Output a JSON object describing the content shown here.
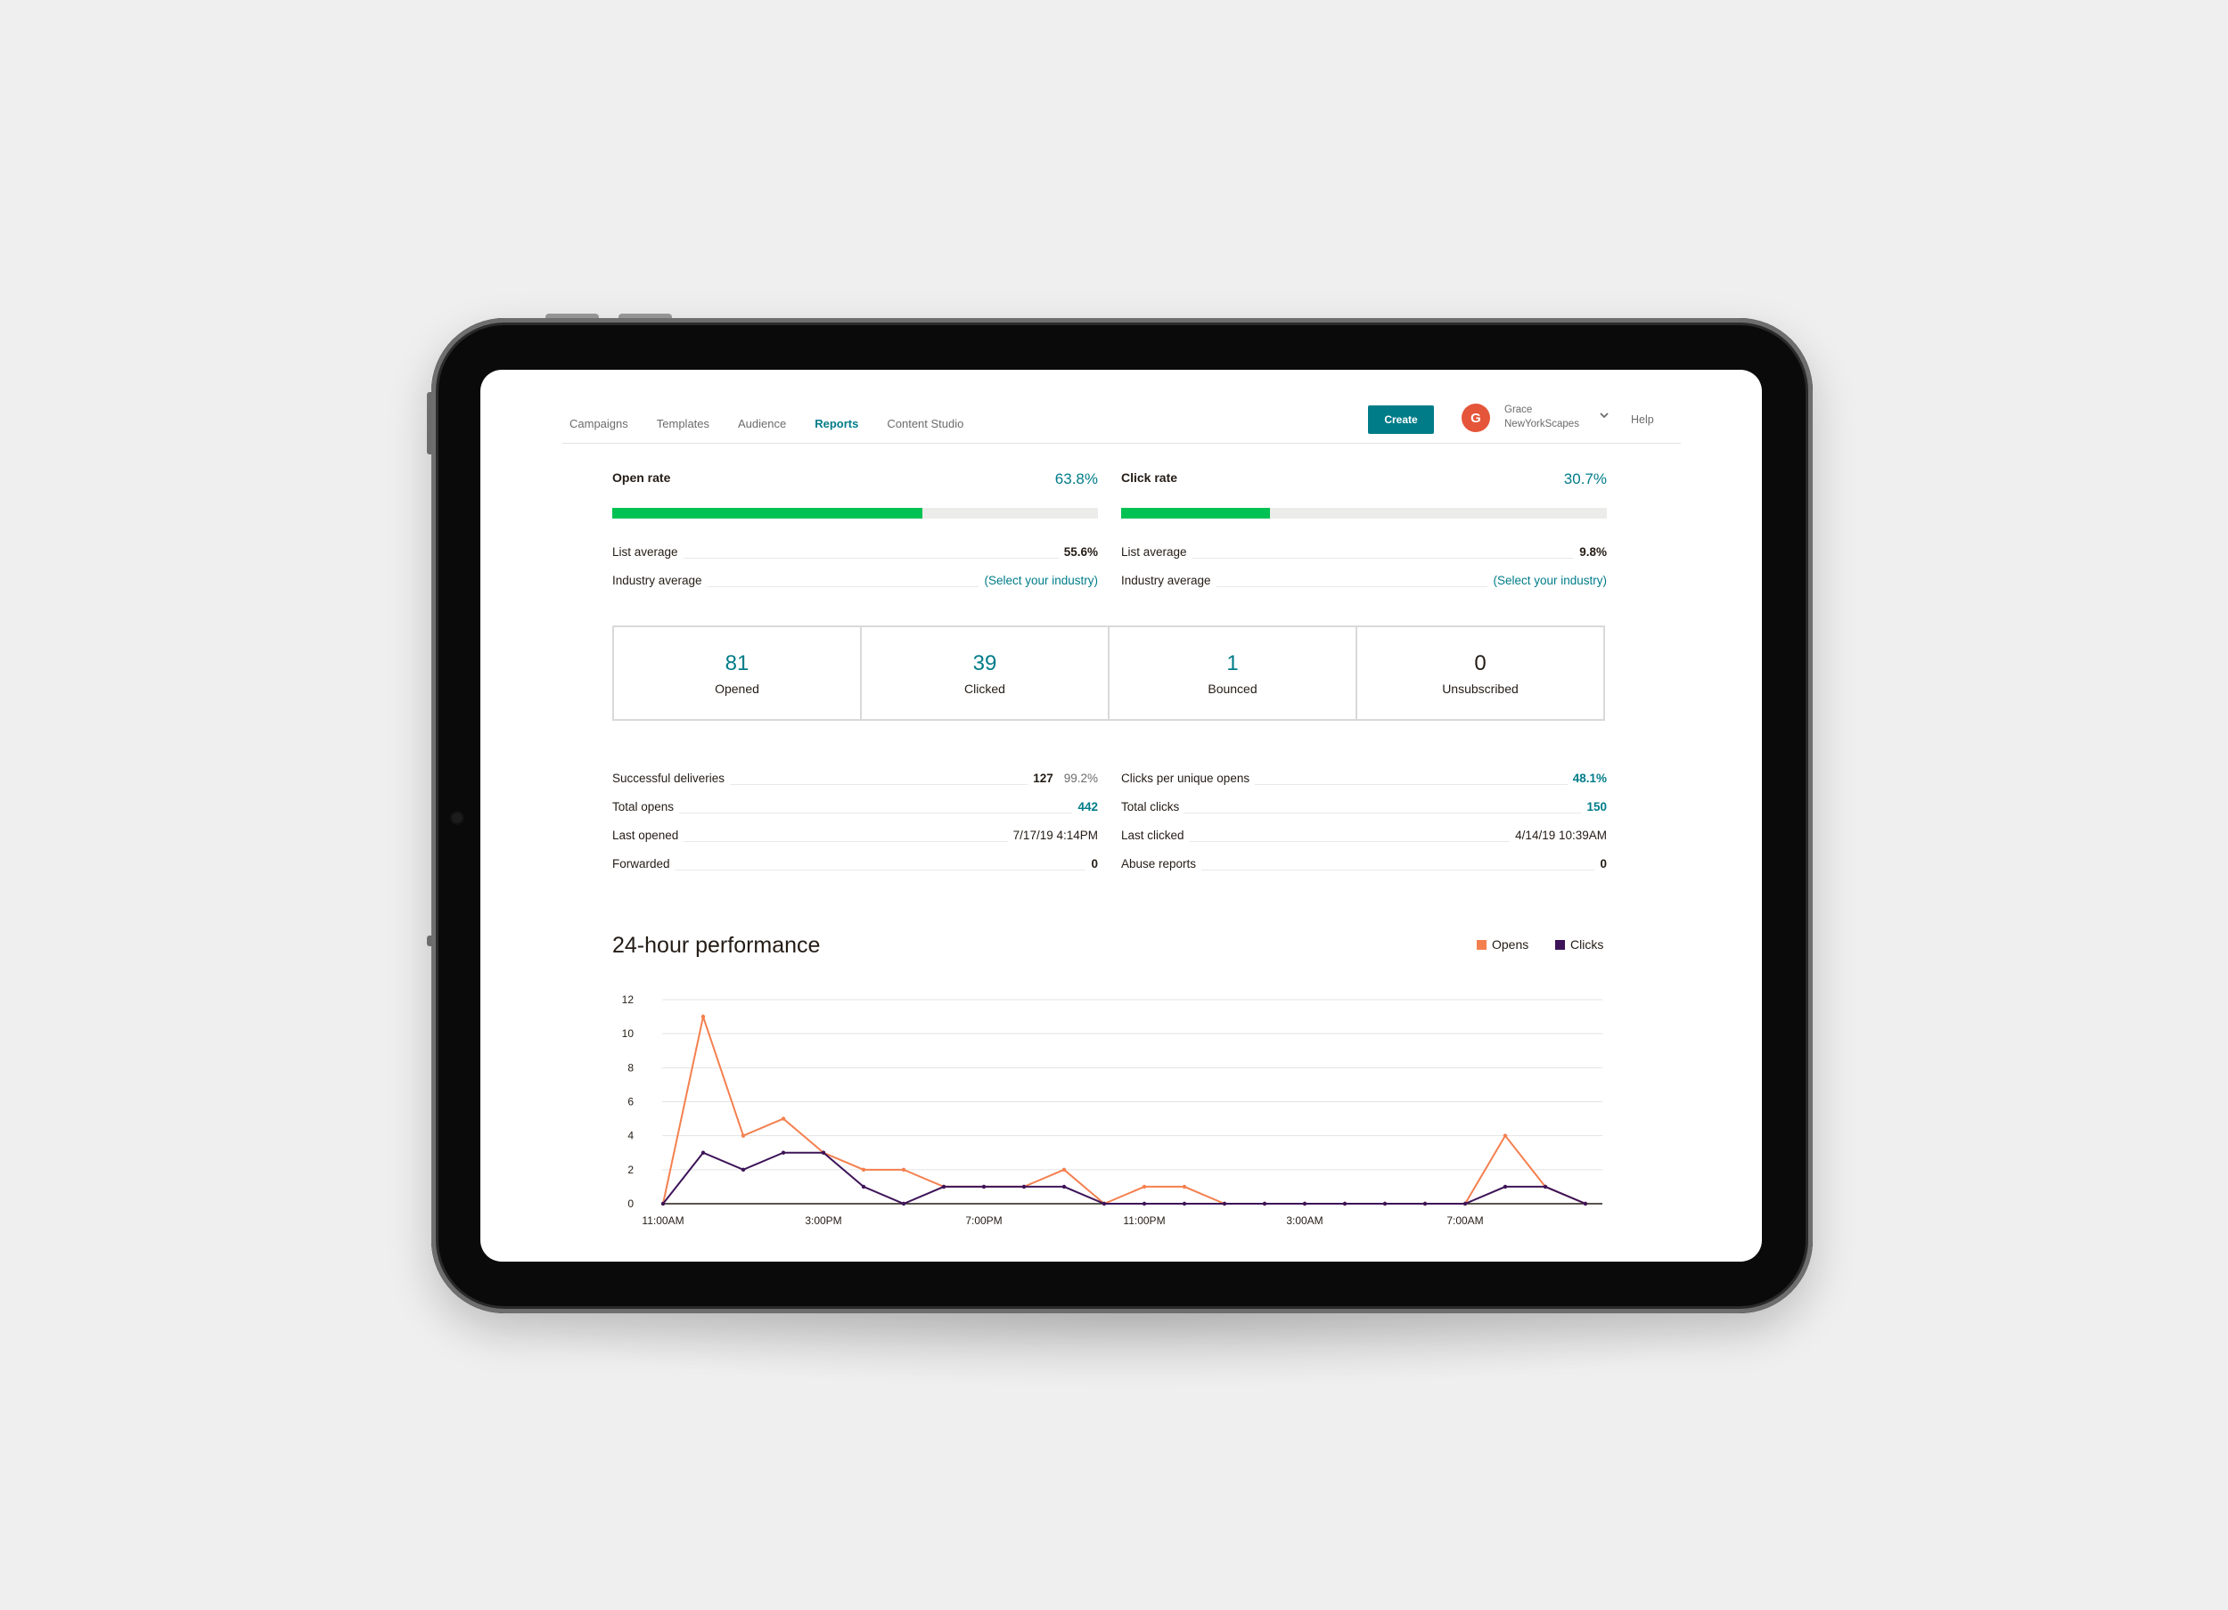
{
  "nav": {
    "items": [
      "Campaigns",
      "Templates",
      "Audience",
      "Reports",
      "Content Studio"
    ],
    "active": "Reports",
    "create_label": "Create",
    "user_initial": "G",
    "user_name": "Grace",
    "user_org": "NewYorkScapes",
    "help_label": "Help"
  },
  "open_rate": {
    "title": "Open rate",
    "value": "63.8%",
    "fraction": 0.638,
    "list_label": "List average",
    "list_value": "55.6%",
    "industry_label": "Industry average",
    "industry_value": "(Select your industry)"
  },
  "click_rate": {
    "title": "Click rate",
    "value": "30.7%",
    "fraction": 0.307,
    "list_label": "List average",
    "list_value": "9.8%",
    "industry_label": "Industry average",
    "industry_value": "(Select your industry)"
  },
  "stats": [
    {
      "value": "81",
      "label": "Opened"
    },
    {
      "value": "39",
      "label": "Clicked"
    },
    {
      "value": "1",
      "label": "Bounced"
    },
    {
      "value": "0",
      "label": "Unsubscribed"
    }
  ],
  "details_left": [
    {
      "label": "Successful deliveries",
      "value": "127",
      "extra": "99.2%"
    },
    {
      "label": "Total opens",
      "value": "442"
    },
    {
      "label": "Last opened",
      "value": "7/17/19 4:14PM"
    },
    {
      "label": "Forwarded",
      "value": "0"
    }
  ],
  "details_right": [
    {
      "label": "Clicks per unique opens",
      "value": "48.1%"
    },
    {
      "label": "Total clicks",
      "value": "150"
    },
    {
      "label": "Last clicked",
      "value": "4/14/19 10:39AM"
    },
    {
      "label": "Abuse reports",
      "value": "0"
    }
  ],
  "colors": {
    "accent": "#007c89",
    "progress": "#00c153",
    "opens": "#f4804f",
    "clicks": "#3d1458",
    "avatar": "#e5553a"
  },
  "chart_data": {
    "type": "line",
    "title": "24-hour performance",
    "x": [
      "11:00AM",
      "12:00PM",
      "1:00PM",
      "2:00PM",
      "3:00PM",
      "4:00PM",
      "5:00PM",
      "6:00PM",
      "7:00PM",
      "8:00PM",
      "9:00PM",
      "10:00PM",
      "11:00PM",
      "12:00AM",
      "1:00AM",
      "2:00AM",
      "3:00AM",
      "4:00AM",
      "5:00AM",
      "6:00AM",
      "7:00AM",
      "8:00AM",
      "9:00AM",
      "10:00AM"
    ],
    "x_tick_labels": [
      "11:00AM",
      "3:00PM",
      "7:00PM",
      "11:00PM",
      "3:00AM",
      "7:00AM"
    ],
    "series": [
      {
        "name": "Opens",
        "values": [
          0,
          11,
          4,
          5,
          3,
          2,
          2,
          1,
          1,
          1,
          2,
          0,
          1,
          1,
          0,
          0,
          0,
          0,
          0,
          0,
          0,
          4,
          1,
          0
        ]
      },
      {
        "name": "Clicks",
        "values": [
          0,
          3,
          2,
          3,
          3,
          1,
          0,
          1,
          1,
          1,
          1,
          0,
          0,
          0,
          0,
          0,
          0,
          0,
          0,
          0,
          0,
          1,
          1,
          0
        ]
      }
    ],
    "ylim": [
      0,
      12
    ],
    "y_ticks": [
      0,
      2,
      4,
      6,
      8,
      10,
      12
    ],
    "grid": true,
    "legend": "top-right"
  }
}
